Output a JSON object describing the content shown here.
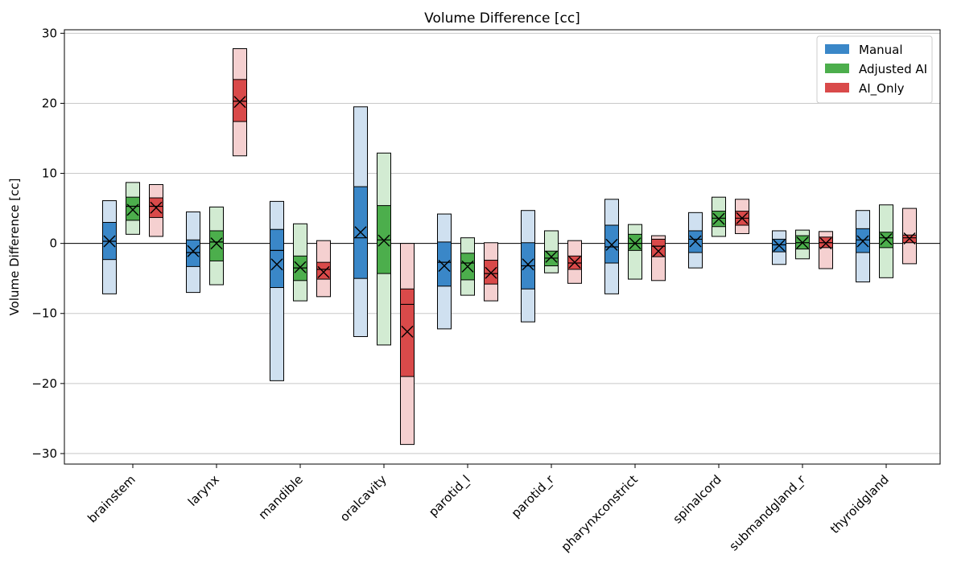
{
  "chart_data": {
    "type": "box",
    "title": "Volume Difference [cc]",
    "xlabel": "",
    "ylabel": "Volume Difference [cc]",
    "ylim": [
      -31.5,
      30.5
    ],
    "yticks": [
      30,
      20,
      10,
      0,
      -10,
      -20,
      -30
    ],
    "ytick_labels": [
      "30",
      "20",
      "10",
      "0",
      "−10",
      "−20",
      "−30"
    ],
    "grid": "horizontal",
    "zero_line": true,
    "legend_position": "top-right",
    "categories": [
      "brainstem",
      "larynx",
      "mandible",
      "oralcavity",
      "parotid_l",
      "parotid_r",
      "pharynxconstrict",
      "spinalcord",
      "submandgland_r",
      "thyroidgland"
    ],
    "series": [
      {
        "name": "Manual",
        "color": "#3a87c8",
        "light_color": "#cfe0f0",
        "boxes": [
          {
            "low": -7.2,
            "q1": -2.3,
            "median": 0.3,
            "q3": 3.0,
            "high": 6.1,
            "mean": 0.3
          },
          {
            "low": -7.0,
            "q1": -3.3,
            "median": -1.3,
            "q3": 0.5,
            "high": 4.5,
            "mean": -1.1
          },
          {
            "low": -19.6,
            "q1": -6.3,
            "median": -1.0,
            "q3": 2.0,
            "high": 6.0,
            "mean": -3.0
          },
          {
            "low": -13.3,
            "q1": -5.0,
            "median": 0.8,
            "q3": 8.1,
            "high": 19.5,
            "mean": 1.6
          },
          {
            "low": -12.2,
            "q1": -6.1,
            "median": -2.7,
            "q3": 0.2,
            "high": 4.2,
            "mean": -3.2
          },
          {
            "low": -11.2,
            "q1": -6.5,
            "median": -3.2,
            "q3": 0.1,
            "high": 4.7,
            "mean": -3.0
          },
          {
            "low": -7.2,
            "q1": -2.8,
            "median": -0.5,
            "q3": 2.6,
            "high": 6.3,
            "mean": -0.2
          },
          {
            "low": -3.5,
            "q1": -1.3,
            "median": 0.6,
            "q3": 1.8,
            "high": 4.4,
            "mean": 0.3
          },
          {
            "low": -3.0,
            "q1": -1.2,
            "median": -0.2,
            "q3": 0.6,
            "high": 1.8,
            "mean": -0.3
          },
          {
            "low": -5.5,
            "q1": -1.3,
            "median": 0.5,
            "q3": 2.1,
            "high": 4.7,
            "mean": 0.3
          }
        ]
      },
      {
        "name": "Adjusted AI",
        "color": "#4cae4c",
        "light_color": "#d2ebd2",
        "boxes": [
          {
            "low": 1.3,
            "q1": 3.3,
            "median": 5.3,
            "q3": 6.6,
            "high": 8.7,
            "mean": 4.8
          },
          {
            "low": -5.9,
            "q1": -2.5,
            "median": 0.2,
            "q3": 1.8,
            "high": 5.2,
            "mean": 0.0
          },
          {
            "low": -8.2,
            "q1": -5.3,
            "median": -3.5,
            "q3": -1.8,
            "high": 2.8,
            "mean": -3.4
          },
          {
            "low": -14.5,
            "q1": -4.3,
            "median": 0.5,
            "q3": 5.4,
            "high": 12.9,
            "mean": 0.4
          },
          {
            "low": -7.4,
            "q1": -5.2,
            "median": -2.8,
            "q3": -1.4,
            "high": 0.8,
            "mean": -3.3
          },
          {
            "low": -4.2,
            "q1": -3.2,
            "median": -2.1,
            "q3": -1.1,
            "high": 1.8,
            "mean": -1.9
          },
          {
            "low": -5.1,
            "q1": -1.0,
            "median": 0.0,
            "q3": 1.3,
            "high": 2.7,
            "mean": 0.0
          },
          {
            "low": 1.0,
            "q1": 2.4,
            "median": 3.6,
            "q3": 4.6,
            "high": 6.6,
            "mean": 3.5
          },
          {
            "low": -2.2,
            "q1": -0.8,
            "median": 0.1,
            "q3": 1.1,
            "high": 1.9,
            "mean": 0.1
          },
          {
            "low": -4.9,
            "q1": -0.6,
            "median": 0.8,
            "q3": 1.6,
            "high": 5.5,
            "mean": 0.6
          }
        ]
      },
      {
        "name": "AI_Only",
        "color": "#d94a4a",
        "light_color": "#f5d0d0",
        "boxes": [
          {
            "low": 1.0,
            "q1": 3.7,
            "median": 5.3,
            "q3": 6.5,
            "high": 8.4,
            "mean": 5.1
          },
          {
            "low": 12.5,
            "q1": 17.4,
            "median": 20.3,
            "q3": 23.4,
            "high": 27.8,
            "mean": 20.2
          },
          {
            "low": -7.6,
            "q1": -5.1,
            "median": -3.7,
            "q3": -2.7,
            "high": 0.4,
            "mean": -4.1
          },
          {
            "low": -28.7,
            "q1": -19.0,
            "median": -8.7,
            "q3": -6.5,
            "high": 0.0,
            "mean": -12.6
          },
          {
            "low": -8.2,
            "q1": -5.8,
            "median": -4.3,
            "q3": -2.4,
            "high": 0.1,
            "mean": -4.2
          },
          {
            "low": -5.7,
            "q1": -3.7,
            "median": -2.8,
            "q3": -1.8,
            "high": 0.4,
            "mean": -2.7
          },
          {
            "low": -5.3,
            "q1": -1.9,
            "median": -0.4,
            "q3": 0.6,
            "high": 1.1,
            "mean": -1.1
          },
          {
            "low": 1.4,
            "q1": 2.6,
            "median": 3.6,
            "q3": 4.6,
            "high": 6.3,
            "mean": 3.6
          },
          {
            "low": -3.6,
            "q1": -0.6,
            "median": 0.1,
            "q3": 0.9,
            "high": 1.7,
            "mean": 0.0
          },
          {
            "low": -2.9,
            "q1": 0.1,
            "median": 0.8,
            "q3": 1.2,
            "high": 5.0,
            "mean": 0.7
          }
        ]
      }
    ]
  }
}
